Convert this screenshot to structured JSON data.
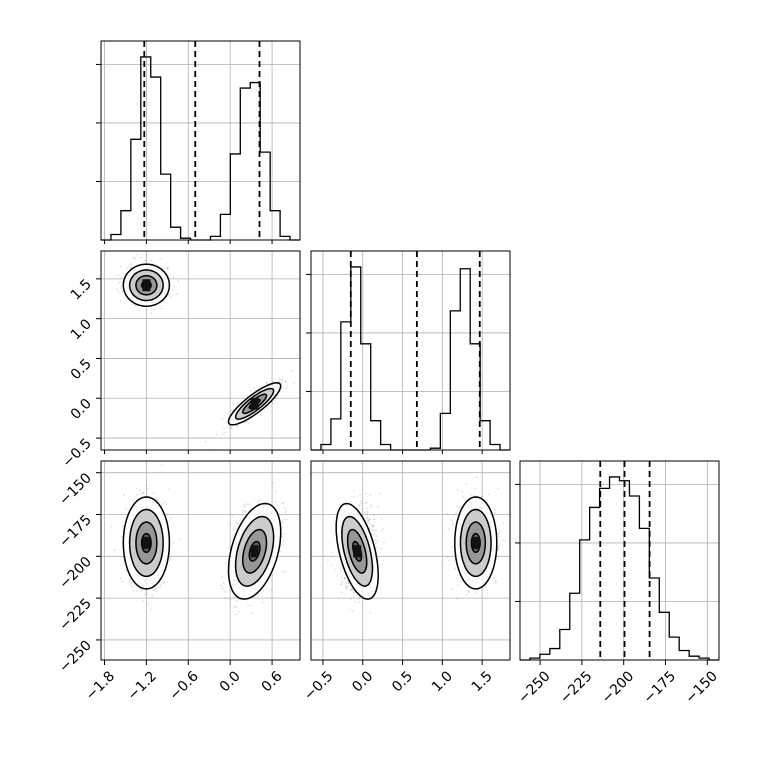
{
  "chart_data": {
    "type": "corner",
    "title": "",
    "parameters": [
      {
        "name": "p1",
        "label": "",
        "range": [
          -1.85,
          1.0
        ],
        "ticks": [
          -1.8,
          -1.2,
          -0.6,
          0.0,
          0.6
        ],
        "tick_labels": [
          "−1.8",
          "−1.2",
          "−0.6",
          "0.0",
          "0.6"
        ],
        "quantiles": [
          -1.23,
          -0.5,
          0.42
        ]
      },
      {
        "name": "p2",
        "label": "",
        "range": [
          -0.65,
          1.85
        ],
        "ticks": [
          -0.5,
          0.0,
          0.5,
          1.0,
          1.5
        ],
        "tick_labels": [
          "−0.5",
          "0.0",
          "0.5",
          "1.0",
          "1.5"
        ],
        "quantiles": [
          -0.15,
          0.68,
          1.47
        ]
      },
      {
        "name": "p3",
        "label": "",
        "range": [
          -262,
          -143
        ],
        "ticks": [
          -250,
          -225,
          -200,
          -175,
          -150
        ],
        "tick_labels": [
          "−250",
          "−225",
          "−200",
          "−175",
          "−150"
        ],
        "quantiles": [
          -214,
          -199.5,
          -184.5
        ]
      }
    ],
    "histograms": [
      {
        "param": 0,
        "edges_range": [
          -1.85,
          1.0
        ],
        "nbins": 20,
        "counts": [
          0,
          3,
          16,
          55,
          100,
          89,
          36,
          7,
          1,
          0,
          0,
          2,
          14,
          47,
          83,
          86,
          48,
          16,
          2,
          0
        ]
      },
      {
        "param": 1,
        "edges_range": [
          -0.65,
          1.85
        ],
        "nbins": 20,
        "counts": [
          0,
          3,
          17,
          70,
          100,
          58,
          16,
          3,
          0,
          0,
          0,
          0,
          1,
          20,
          76,
          99,
          58,
          16,
          3,
          0
        ]
      },
      {
        "param": 2,
        "edges_range": [
          -262,
          -143
        ],
        "nbins": 20,
        "counts": [
          0,
          1,
          3,
          6,
          16,
          35,
          63,
          80,
          90,
          96,
          94,
          86,
          69,
          43,
          25,
          12,
          5,
          2,
          1,
          0
        ]
      }
    ],
    "clusters": [
      {
        "id": "A",
        "mean": [
          -1.2,
          1.42,
          -192
        ],
        "sd": [
          0.15,
          0.12,
          12.5
        ],
        "rho": [
          0,
          0,
          0
        ]
      },
      {
        "id": "B",
        "mean": [
          0.35,
          -0.07,
          -197
        ],
        "sd": [
          0.17,
          0.12,
          13.0
        ],
        "rho": [
          0.85,
          0.4,
          -0.5
        ]
      }
    ],
    "grid": true,
    "legend": "none"
  }
}
